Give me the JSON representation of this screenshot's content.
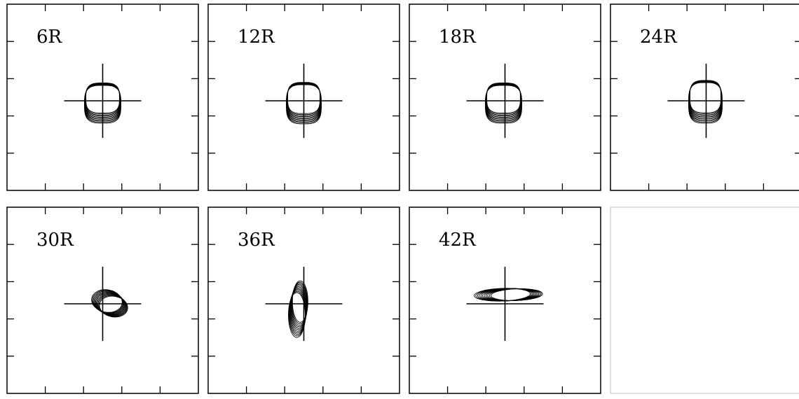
{
  "chart_data": {
    "type": "contour",
    "grid_rows": 2,
    "grid_cols": 4,
    "panels": [
      {
        "label": "6R",
        "shape": "square",
        "contours": 11,
        "offset": [
          0,
          0
        ],
        "rx": 26,
        "ry": 27,
        "tilt": 0,
        "drift": [
          0.0,
          0.0
        ]
      },
      {
        "label": "12R",
        "shape": "square",
        "contours": 11,
        "offset": [
          0,
          0
        ],
        "rx": 25,
        "ry": 28,
        "tilt": 0,
        "drift": [
          0.0,
          0.0
        ]
      },
      {
        "label": "18R",
        "shape": "square",
        "contours": 11,
        "offset": [
          -2,
          0
        ],
        "rx": 26,
        "ry": 27,
        "tilt": 0,
        "drift": [
          0.0,
          0.0
        ]
      },
      {
        "label": "24R",
        "shape": "square",
        "contours": 11,
        "offset": [
          -1,
          -2
        ],
        "rx": 24,
        "ry": 29,
        "tilt": 0,
        "drift": [
          0.0,
          0.0
        ]
      },
      {
        "label": "30R",
        "shape": "ellipse",
        "contours": 11,
        "offset": [
          6,
          -4
        ],
        "rx": 22,
        "ry": 16,
        "tilt": 10,
        "drift": [
          0.6,
          0.5
        ]
      },
      {
        "label": "36R",
        "shape": "ellipse",
        "contours": 11,
        "offset": [
          -10,
          16
        ],
        "rx": 12,
        "ry": 32,
        "tilt": 0,
        "drift": [
          0.3,
          -1.2
        ]
      },
      {
        "label": "42R",
        "shape": "ellipse",
        "contours": 11,
        "offset": [
          -4,
          -13
        ],
        "rx": 40,
        "ry": 9,
        "tilt": -2,
        "drift": [
          1.3,
          0.0
        ]
      },
      {
        "label": "",
        "shape": "empty",
        "contours": 0,
        "offset": [
          0,
          0
        ],
        "rx": 0,
        "ry": 0,
        "tilt": 0,
        "drift": [
          0,
          0
        ]
      }
    ],
    "xlim": [
      -2.5,
      2.5
    ],
    "ylim": [
      -2.5,
      2.5
    ],
    "xlabel": "",
    "ylabel": "",
    "grid": false,
    "colors": {
      "ink": "#000000",
      "background": "#ffffff"
    }
  }
}
